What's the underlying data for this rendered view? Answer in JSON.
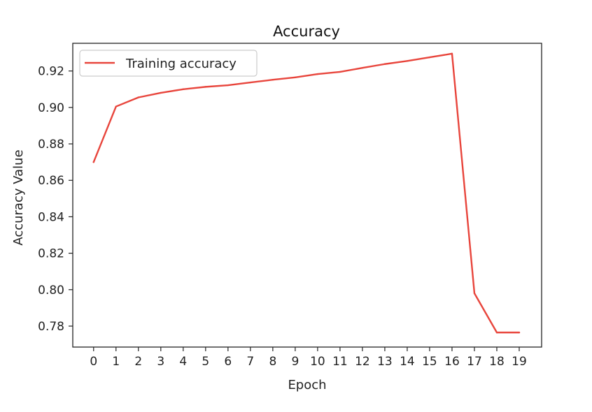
{
  "chart_data": {
    "type": "line",
    "title": "Accuracy",
    "xlabel": "Epoch",
    "ylabel": "Accuracy Value",
    "x": [
      0,
      1,
      2,
      3,
      4,
      5,
      6,
      7,
      8,
      9,
      10,
      11,
      12,
      13,
      14,
      15,
      16,
      17,
      18,
      19
    ],
    "x_tick_labels": [
      "0",
      "1",
      "2",
      "3",
      "4",
      "5",
      "6",
      "7",
      "8",
      "9",
      "10",
      "11",
      "12",
      "13",
      "14",
      "15",
      "16",
      "17",
      "18",
      "19"
    ],
    "xlim": [
      -0.93,
      20.0
    ],
    "ylim": [
      0.7685,
      0.9352
    ],
    "y_ticks": [
      0.78,
      0.8,
      0.82,
      0.84,
      0.86,
      0.88,
      0.9,
      0.92
    ],
    "y_tick_labels": [
      "0.78",
      "0.80",
      "0.82",
      "0.84",
      "0.86",
      "0.88",
      "0.90",
      "0.92"
    ],
    "grid": false,
    "legend_position": "top-left",
    "series": [
      {
        "name": "Training accuracy",
        "color": "#e8453c",
        "values": [
          0.87,
          0.9005,
          0.9055,
          0.908,
          0.91,
          0.9113,
          0.9122,
          0.9137,
          0.9152,
          0.9165,
          0.9183,
          0.9195,
          0.9217,
          0.9238,
          0.9255,
          0.9275,
          0.9295,
          0.798,
          0.7765,
          0.7765
        ]
      }
    ]
  }
}
